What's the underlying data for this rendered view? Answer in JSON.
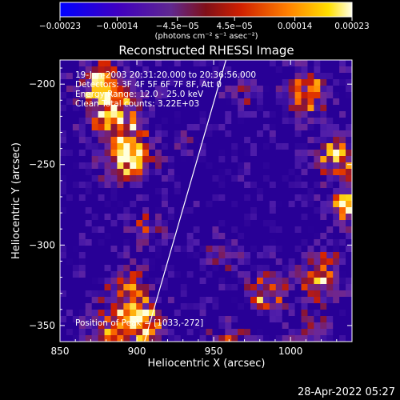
{
  "chart_data": {
    "type": "heatmap",
    "title": "Reconstructed RHESSI Image",
    "xlabel": "Heliocentric X (arcsec)",
    "ylabel": "Heliocentric Y (arcsec)",
    "xlim": [
      850,
      1040
    ],
    "ylim": [
      -360,
      -185
    ],
    "x_ticks": [
      850,
      900,
      950,
      1000
    ],
    "x_tick_labels": [
      "850",
      "900",
      "950",
      "1000"
    ],
    "y_ticks": [
      -200,
      -250,
      -300,
      -350
    ],
    "y_tick_labels": [
      "−200",
      "−250",
      "−300",
      "−350"
    ],
    "colorbar": {
      "tick_values": [
        -0.00023,
        -0.00014,
        -4.5e-05,
        4.5e-05,
        0.00014,
        0.00023
      ],
      "tick_labels": [
        "−0.00023",
        "−0.00014",
        "−4.5e−05",
        "4.5e−05",
        "0.00014",
        "0.00023"
      ],
      "unit_label": "(photons cm⁻² s⁻¹ asec⁻²)",
      "range": [
        -0.00023,
        0.00023
      ],
      "colormap": [
        "#0000ff",
        "#3a00c0",
        "#6a1a9a",
        "#9a1030",
        "#d02000",
        "#ff7000",
        "#ffd000",
        "#ffffff"
      ]
    },
    "info_lines": [
      "19-Jan-2003 20:31:20.000 to 20:36:56.000",
      "Detectors: 3F 4F 5F 6F 7F 8F, Att 0",
      "Energy Range: 12.0 - 25.0 keV",
      "Clean    Total counts: 3.22E+03"
    ],
    "peak_label": "Position of Peak = [1033,-272]",
    "peak": [
      1033,
      -272
    ],
    "limb_line": [
      [
        905,
        -360
      ],
      [
        958,
        -185
      ]
    ],
    "grid": false
  },
  "footer": {
    "timestamp": "28-Apr-2022 05:27"
  }
}
